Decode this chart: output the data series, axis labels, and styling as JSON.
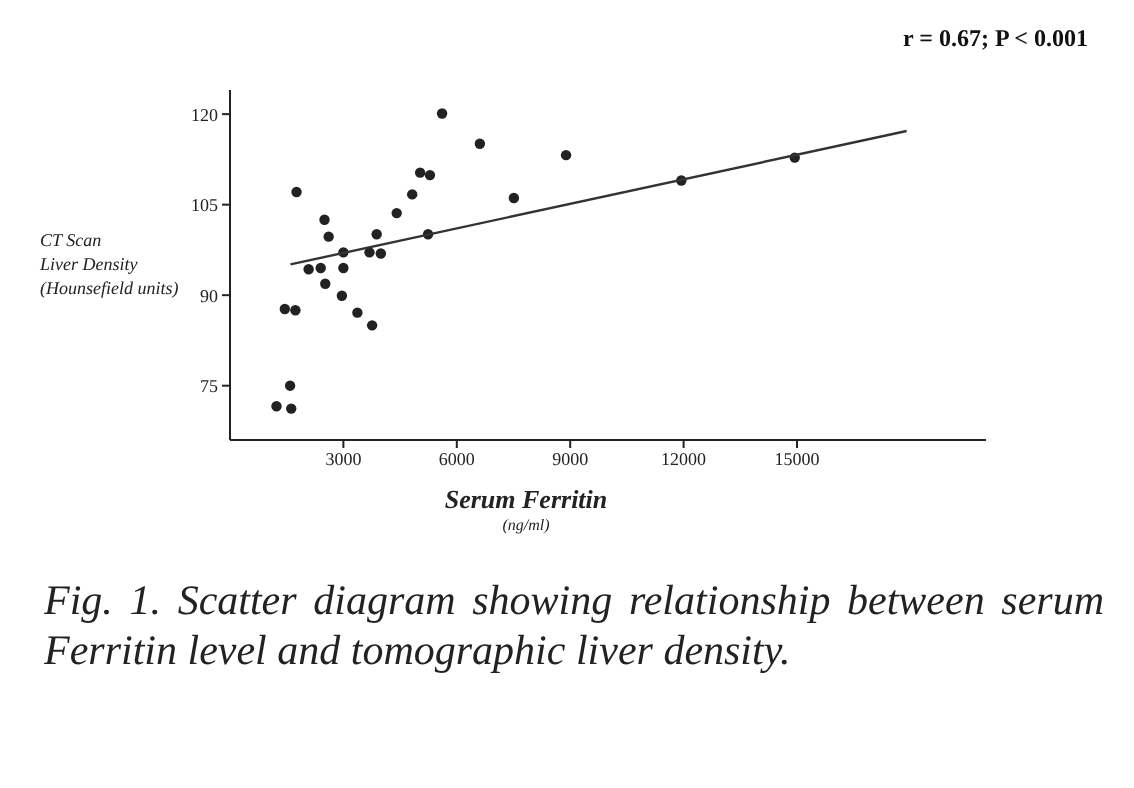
{
  "chart_data": {
    "type": "scatter",
    "xlabel": "Serum Ferritin\n(ng/ml)",
    "ylabel": "CT Scan\nLiver Density\n(Hounsefield units)",
    "annotations": [
      "r = 0.67; P < 0.001",
      "Fig. 1. Scatter diagram showing relationship between serum Ferritin level and tomographic liver density."
    ],
    "xlim": [
      0,
      20000
    ],
    "xticks": [
      3000,
      6000,
      9000,
      12000,
      15000
    ],
    "ylim": [
      66,
      124
    ],
    "yticks": [
      75,
      90,
      105,
      120
    ],
    "grid": false,
    "marker": "circle",
    "series": [
      {
        "type": "scatter",
        "color": "#222222",
        "x": [
          1230,
          1620,
          1590,
          1450,
          1730,
          1760,
          2080,
          2400,
          2500,
          2610,
          2520,
          2960,
          3000,
          3000,
          3370,
          3760,
          3690,
          3990,
          3880,
          4410,
          4820,
          5030,
          5290,
          5240,
          5610,
          6610,
          7510,
          8890,
          11940,
          14940
        ],
        "values": [
          71.6,
          71.2,
          75,
          87.7,
          87.5,
          107.1,
          94.3,
          94.5,
          102.5,
          99.7,
          91.9,
          89.9,
          94.5,
          97.1,
          87.1,
          85,
          97.1,
          96.9,
          100.1,
          103.6,
          106.7,
          110.3,
          109.9,
          100.1,
          120.1,
          115.1,
          106.1,
          113.2,
          109,
          112.8
        ]
      },
      {
        "type": "line",
        "marker": "none",
        "color": "#333333",
        "x": [
          1600,
          17900
        ],
        "values": [
          95.1,
          117.2
        ]
      }
    ]
  }
}
